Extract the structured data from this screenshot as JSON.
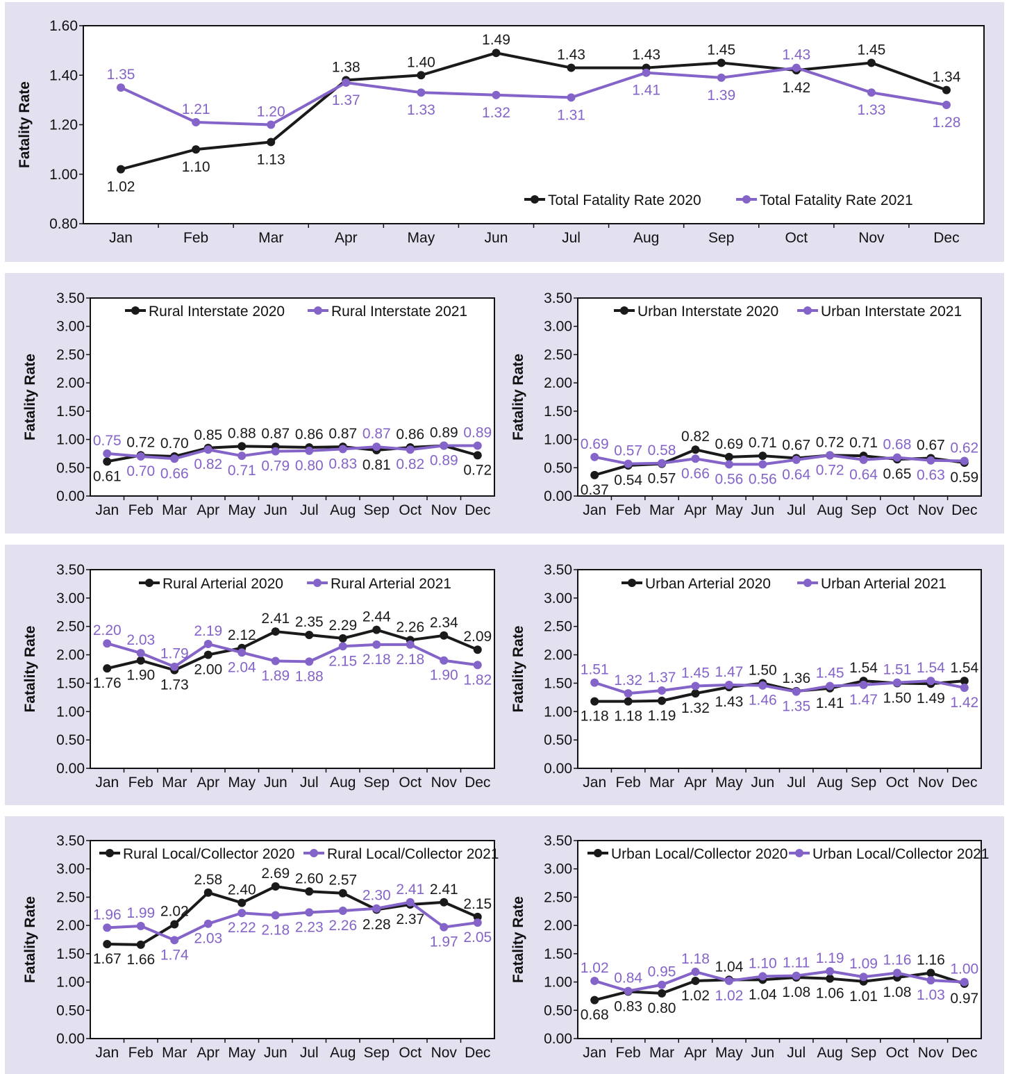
{
  "colors": {
    "series_2020": "#1a1a1a",
    "series_2021": "#8464c8",
    "background": "#e3e0ef"
  },
  "chart_data": [
    {
      "type": "line",
      "categories": [
        "Jan",
        "Feb",
        "Mar",
        "Apr",
        "May",
        "Jun",
        "Jul",
        "Aug",
        "Sep",
        "Oct",
        "Nov",
        "Dec"
      ],
      "ylabel": "Fatality Rate",
      "ylim": [
        0.8,
        1.6
      ],
      "yticks": [
        "0.80",
        "1.00",
        "1.20",
        "1.40",
        "1.60"
      ],
      "legend_position": "bottom-right",
      "series": [
        {
          "name": "Total Fatality Rate 2020",
          "values": [
            1.02,
            1.1,
            1.13,
            1.38,
            1.4,
            1.49,
            1.43,
            1.43,
            1.45,
            1.42,
            1.45,
            1.34
          ],
          "labels": [
            "1.02",
            "1.10",
            "1.13",
            "1.38",
            "1.40",
            "1.49",
            "1.43",
            "1.43",
            "1.45",
            "1.42",
            "1.45",
            "1.34"
          ]
        },
        {
          "name": "Total Fatality Rate 2021",
          "values": [
            1.35,
            1.21,
            1.2,
            1.37,
            1.33,
            1.32,
            1.31,
            1.41,
            1.39,
            1.43,
            1.33,
            1.28
          ],
          "labels": [
            "1.35",
            "1.21",
            "1.20",
            "1.37",
            "1.33",
            "1.32",
            "1.31",
            "1.41",
            "1.39",
            "1.43",
            "1.33",
            "1.28"
          ]
        }
      ]
    },
    {
      "type": "line",
      "categories": [
        "Jan",
        "Feb",
        "Mar",
        "Apr",
        "May",
        "Jun",
        "Jul",
        "Aug",
        "Sep",
        "Oct",
        "Nov",
        "Dec"
      ],
      "ylabel": "Fatality Rate",
      "ylim": [
        0,
        3.5
      ],
      "yticks": [
        "0.00",
        "0.50",
        "1.00",
        "1.50",
        "2.00",
        "2.50",
        "3.00",
        "3.50"
      ],
      "legend_position": "top",
      "series": [
        {
          "name": "Rural Interstate 2020",
          "values": [
            0.61,
            0.72,
            0.7,
            0.85,
            0.88,
            0.87,
            0.86,
            0.87,
            0.81,
            0.86,
            0.89,
            0.72
          ],
          "labels": [
            "0.61",
            "0.72",
            "0.70",
            "0.85",
            "0.88",
            "0.87",
            "0.86",
            "0.87",
            "0.81",
            "0.86",
            "0.89",
            "0.72"
          ]
        },
        {
          "name": "Rural Interstate 2021",
          "values": [
            0.75,
            0.7,
            0.66,
            0.82,
            0.71,
            0.79,
            0.8,
            0.83,
            0.87,
            0.82,
            0.89,
            0.89
          ],
          "labels": [
            "0.75",
            "0.70",
            "0.66",
            "0.82",
            "0.71",
            "0.79",
            "0.80",
            "0.83",
            "0.87",
            "0.82",
            "0.89",
            "0.89"
          ]
        }
      ]
    },
    {
      "type": "line",
      "categories": [
        "Jan",
        "Feb",
        "Mar",
        "Apr",
        "May",
        "Jun",
        "Jul",
        "Aug",
        "Sep",
        "Oct",
        "Nov",
        "Dec"
      ],
      "ylabel": "Fatality Rate",
      "ylim": [
        0,
        3.5
      ],
      "yticks": [
        "0.00",
        "0.50",
        "1.00",
        "1.50",
        "2.00",
        "2.50",
        "3.00",
        "3.50"
      ],
      "legend_position": "top",
      "series": [
        {
          "name": "Urban Interstate 2020",
          "values": [
            0.37,
            0.54,
            0.57,
            0.82,
            0.69,
            0.71,
            0.67,
            0.72,
            0.71,
            0.65,
            0.67,
            0.59
          ],
          "labels": [
            "0.37",
            "0.54",
            "0.57",
            "0.82",
            "0.69",
            "0.71",
            "0.67",
            "0.72",
            "0.71",
            "0.65",
            "0.67",
            "0.59"
          ]
        },
        {
          "name": "Urban Interstate 2021",
          "values": [
            0.69,
            0.57,
            0.58,
            0.66,
            0.56,
            0.56,
            0.64,
            0.72,
            0.64,
            0.68,
            0.63,
            0.62
          ],
          "labels": [
            "0.69",
            "0.57",
            "0.58",
            "0.66",
            "0.56",
            "0.56",
            "0.64",
            "0.72",
            "0.64",
            "0.68",
            "0.63",
            "0.62"
          ]
        }
      ]
    },
    {
      "type": "line",
      "categories": [
        "Jan",
        "Feb",
        "Mar",
        "Apr",
        "May",
        "Jun",
        "Jul",
        "Aug",
        "Sep",
        "Oct",
        "Nov",
        "Dec"
      ],
      "ylabel": "Fatality Rate",
      "ylim": [
        0,
        3.5
      ],
      "yticks": [
        "0.00",
        "0.50",
        "1.00",
        "1.50",
        "2.00",
        "2.50",
        "3.00",
        "3.50"
      ],
      "legend_position": "top",
      "series": [
        {
          "name": "Rural Arterial 2020",
          "values": [
            1.76,
            1.9,
            1.73,
            2.0,
            2.12,
            2.41,
            2.35,
            2.29,
            2.44,
            2.26,
            2.34,
            2.09
          ],
          "labels": [
            "1.76",
            "1.90",
            "1.73",
            "2.00",
            "2.12",
            "2.41",
            "2.35",
            "2.29",
            "2.44",
            "2.26",
            "2.34",
            "2.09"
          ]
        },
        {
          "name": "Rural Arterial 2021",
          "values": [
            2.2,
            2.03,
            1.79,
            2.19,
            2.04,
            1.89,
            1.88,
            2.15,
            2.18,
            2.18,
            1.9,
            1.82
          ],
          "labels": [
            "2.20",
            "2.03",
            "1.79",
            "2.19",
            "2.04",
            "1.89",
            "1.88",
            "2.15",
            "2.18",
            "2.18",
            "1.90",
            "1.82"
          ]
        }
      ]
    },
    {
      "type": "line",
      "categories": [
        "Jan",
        "Feb",
        "Mar",
        "Apr",
        "May",
        "Jun",
        "Jul",
        "Aug",
        "Sep",
        "Oct",
        "Nov",
        "Dec"
      ],
      "ylabel": "Fatality Rate",
      "ylim": [
        0,
        3.5
      ],
      "yticks": [
        "0.00",
        "0.50",
        "1.00",
        "1.50",
        "2.00",
        "2.50",
        "3.00",
        "3.50"
      ],
      "legend_position": "top",
      "series": [
        {
          "name": "Urban Arterial 2020",
          "values": [
            1.18,
            1.18,
            1.19,
            1.32,
            1.43,
            1.5,
            1.36,
            1.41,
            1.54,
            1.5,
            1.49,
            1.54
          ],
          "labels": [
            "1.18",
            "1.18",
            "1.19",
            "1.32",
            "1.43",
            "1.50",
            "1.36",
            "1.41",
            "1.54",
            "1.50",
            "1.49",
            "1.54"
          ]
        },
        {
          "name": "Urban Arterial 2021",
          "values": [
            1.51,
            1.32,
            1.37,
            1.45,
            1.47,
            1.46,
            1.35,
            1.45,
            1.47,
            1.51,
            1.54,
            1.42
          ],
          "labels": [
            "1.51",
            "1.32",
            "1.37",
            "1.45",
            "1.47",
            "1.46",
            "1.35",
            "1.45",
            "1.47",
            "1.51",
            "1.54",
            "1.42"
          ]
        }
      ]
    },
    {
      "type": "line",
      "categories": [
        "Jan",
        "Feb",
        "Mar",
        "Apr",
        "May",
        "Jun",
        "Jul",
        "Aug",
        "Sep",
        "Oct",
        "Nov",
        "Dec"
      ],
      "ylabel": "Fatality Rate",
      "ylim": [
        0,
        3.5
      ],
      "yticks": [
        "0.00",
        "0.50",
        "1.00",
        "1.50",
        "2.00",
        "2.50",
        "3.00",
        "3.50"
      ],
      "legend_position": "top",
      "series": [
        {
          "name": "Rural Local/Collector 2020",
          "values": [
            1.67,
            1.66,
            2.02,
            2.58,
            2.4,
            2.69,
            2.6,
            2.57,
            2.28,
            2.37,
            2.41,
            2.15
          ],
          "labels": [
            "1.67",
            "1.66",
            "2.02",
            "2.58",
            "2.40",
            "2.69",
            "2.60",
            "2.57",
            "2.28",
            "2.37",
            "2.41",
            "2.15"
          ]
        },
        {
          "name": "Rural Local/Collector 2021",
          "values": [
            1.96,
            1.99,
            1.74,
            2.03,
            2.22,
            2.18,
            2.23,
            2.26,
            2.3,
            2.41,
            1.97,
            2.05
          ],
          "labels": [
            "1.96",
            "1.99",
            "1.74",
            "2.03",
            "2.22",
            "2.18",
            "2.23",
            "2.26",
            "2.30",
            "2.41",
            "1.97",
            "2.05"
          ]
        }
      ]
    },
    {
      "type": "line",
      "categories": [
        "Jan",
        "Feb",
        "Mar",
        "Apr",
        "May",
        "Jun",
        "Jul",
        "Aug",
        "Sep",
        "Oct",
        "Nov",
        "Dec"
      ],
      "ylabel": "Fatality Rate",
      "ylim": [
        0,
        3.5
      ],
      "yticks": [
        "0.00",
        "0.50",
        "1.00",
        "1.50",
        "2.00",
        "2.50",
        "3.00",
        "3.50"
      ],
      "legend_position": "top",
      "series": [
        {
          "name": "Urban Local/Collector 2020",
          "values": [
            0.68,
            0.83,
            0.8,
            1.02,
            1.04,
            1.04,
            1.08,
            1.06,
            1.01,
            1.08,
            1.16,
            0.97
          ],
          "labels": [
            "0.68",
            "0.83",
            "0.80",
            "1.02",
            "1.04",
            "1.04",
            "1.08",
            "1.06",
            "1.01",
            "1.08",
            "1.16",
            "0.97"
          ]
        },
        {
          "name": "Urban Local/Collector 2021",
          "values": [
            1.02,
            0.84,
            0.95,
            1.18,
            1.02,
            1.1,
            1.11,
            1.19,
            1.09,
            1.16,
            1.03,
            1.0
          ],
          "labels": [
            "1.02",
            "0.84",
            "0.95",
            "1.18",
            "1.02",
            "1.10",
            "1.11",
            "1.19",
            "1.09",
            "1.16",
            "1.03",
            "1.00"
          ]
        }
      ]
    }
  ]
}
